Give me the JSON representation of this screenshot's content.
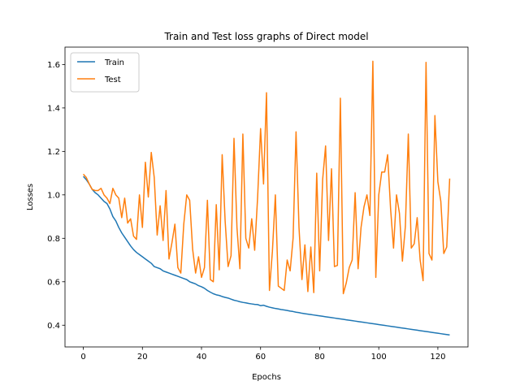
{
  "chart_data": {
    "type": "line",
    "title": "Train and Test loss graphs of Direct model",
    "xlabel": "Epochs",
    "ylabel": "Losses",
    "xlim": [
      -6.2,
      130.2
    ],
    "ylim": [
      0.3,
      1.68
    ],
    "xticks": [
      0,
      20,
      40,
      60,
      80,
      100,
      120
    ],
    "yticks": [
      0.4,
      0.6,
      0.8,
      1.0,
      1.2,
      1.4,
      1.6
    ],
    "grid": false,
    "legend_position": "top-left",
    "series": [
      {
        "name": "Train",
        "color": "#1f77b4",
        "values": [
          1.085,
          1.07,
          1.05,
          1.025,
          1.01,
          1.0,
          0.985,
          0.97,
          0.96,
          0.935,
          0.9,
          0.88,
          0.85,
          0.825,
          0.805,
          0.785,
          0.765,
          0.748,
          0.735,
          0.725,
          0.715,
          0.705,
          0.695,
          0.685,
          0.67,
          0.665,
          0.66,
          0.65,
          0.645,
          0.64,
          0.635,
          0.63,
          0.625,
          0.62,
          0.615,
          0.61,
          0.6,
          0.595,
          0.59,
          0.582,
          0.577,
          0.57,
          0.56,
          0.552,
          0.545,
          0.54,
          0.537,
          0.532,
          0.528,
          0.525,
          0.52,
          0.515,
          0.512,
          0.508,
          0.505,
          0.503,
          0.5,
          0.498,
          0.496,
          0.495,
          0.49,
          0.492,
          0.487,
          0.483,
          0.48,
          0.477,
          0.475,
          0.472,
          0.47,
          0.468,
          0.465,
          0.463,
          0.46,
          0.458,
          0.455,
          0.453,
          0.451,
          0.449,
          0.447,
          0.445,
          0.443,
          0.441,
          0.439,
          0.437,
          0.435,
          0.433,
          0.431,
          0.429,
          0.427,
          0.425,
          0.423,
          0.421,
          0.419,
          0.417,
          0.415,
          0.413,
          0.411,
          0.409,
          0.407,
          0.405,
          0.403,
          0.401,
          0.399,
          0.397,
          0.395,
          0.393,
          0.391,
          0.389,
          0.387,
          0.385,
          0.383,
          0.381,
          0.379,
          0.377,
          0.375,
          0.373,
          0.371,
          0.369,
          0.367,
          0.365,
          0.363,
          0.361,
          0.359,
          0.357,
          0.355
        ]
      },
      {
        "name": "Test",
        "color": "#ff7f0e",
        "values": [
          1.095,
          1.08,
          1.05,
          1.025,
          1.02,
          1.02,
          1.03,
          1.0,
          0.985,
          0.96,
          1.03,
          1.0,
          0.985,
          0.895,
          0.985,
          0.87,
          0.89,
          0.81,
          0.795,
          1.0,
          0.85,
          1.15,
          0.99,
          1.195,
          1.08,
          0.815,
          0.95,
          0.79,
          1.02,
          0.705,
          0.78,
          0.865,
          0.665,
          0.64,
          0.865,
          1.0,
          0.975,
          0.75,
          0.64,
          0.715,
          0.62,
          0.665,
          0.975,
          0.61,
          0.6,
          0.955,
          0.655,
          1.185,
          0.88,
          0.67,
          0.72,
          1.26,
          0.85,
          0.66,
          1.28,
          0.8,
          0.755,
          0.89,
          0.745,
          0.99,
          1.305,
          1.05,
          1.47,
          0.56,
          0.74,
          1.0,
          0.58,
          0.57,
          0.56,
          0.7,
          0.65,
          0.8,
          1.29,
          0.85,
          0.61,
          0.77,
          0.555,
          0.76,
          0.55,
          1.1,
          0.65,
          1.07,
          1.225,
          0.79,
          1.12,
          0.67,
          0.675,
          1.445,
          0.545,
          0.595,
          0.665,
          0.7,
          1.01,
          0.66,
          0.85,
          0.945,
          1.0,
          0.905,
          1.615,
          0.62,
          1.0,
          1.105,
          1.105,
          1.185,
          0.935,
          0.755,
          1.0,
          0.915,
          0.695,
          0.855,
          1.28,
          0.755,
          0.775,
          0.895,
          0.7,
          0.605,
          1.61,
          0.73,
          0.7,
          1.365,
          1.06,
          0.97,
          0.73,
          0.76,
          1.075
        ]
      }
    ]
  }
}
